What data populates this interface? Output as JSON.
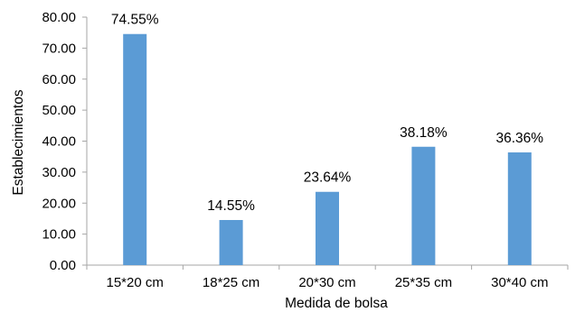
{
  "chart_data": {
    "type": "bar",
    "title": "",
    "xlabel": "Medida de bolsa",
    "ylabel": "Establecimientos",
    "categories": [
      "15*20 cm",
      "18*25 cm",
      "20*30 cm",
      "25*35 cm",
      "30*40 cm"
    ],
    "values": [
      74.55,
      14.55,
      23.64,
      38.18,
      36.36
    ],
    "value_labels": [
      "74.55%",
      "14.55%",
      "23.64%",
      "38.18%",
      "36.36%"
    ],
    "ylim": [
      0,
      80
    ],
    "y_ticks": [
      "0.00",
      "10.00",
      "20.00",
      "30.00",
      "40.00",
      "50.00",
      "60.00",
      "70.00",
      "80.00"
    ],
    "grid": false,
    "legend": "none",
    "bar_color": "#5B9BD5",
    "axis_color": "#A6A6A6"
  }
}
